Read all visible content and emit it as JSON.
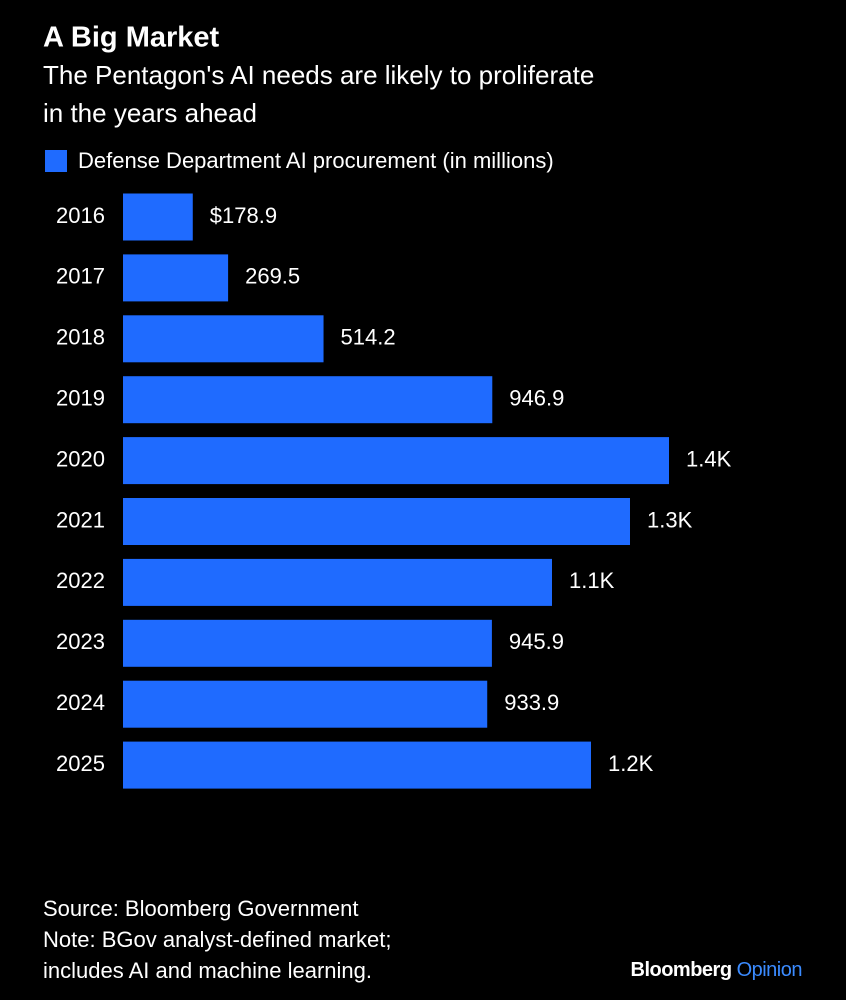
{
  "chart_data": {
    "type": "bar",
    "orientation": "horizontal",
    "title": "A Big Market",
    "subtitle": [
      "The Pentagon's AI needs are likely to proliferate",
      "in the years ahead"
    ],
    "categories": [
      "2016",
      "2017",
      "2018",
      "2019",
      "2020",
      "2021",
      "2022",
      "2023",
      "2024",
      "2025"
    ],
    "series": [
      {
        "name": "Defense Department AI procurement (in millions)",
        "color": "#1f6bff",
        "values": [
          178.9,
          269.5,
          514.2,
          946.9,
          1400,
          1300,
          1100,
          945.9,
          933.9,
          1200
        ],
        "value_labels": [
          "$178.9",
          "269.5",
          "514.2",
          "946.9",
          "1.4K",
          "1.3K",
          "1.1K",
          "945.9",
          "933.9",
          "1.2K"
        ]
      }
    ],
    "footnotes": [
      "Source: Bloomberg Government",
      "Note: BGov analyst-defined market;",
      "includes AI and machine learning."
    ],
    "logo": [
      "Bloomberg",
      "Opinion"
    ]
  }
}
